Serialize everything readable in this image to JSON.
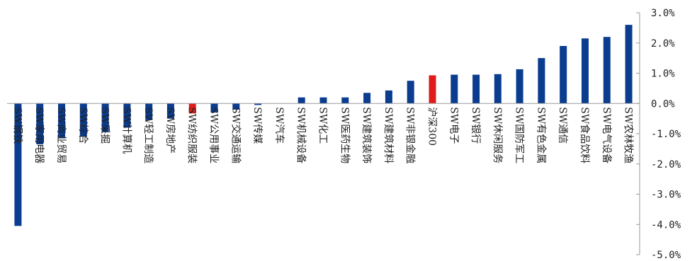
{
  "chart_data": {
    "type": "bar",
    "categories": [
      "SW钢铁",
      "SW家用电器",
      "SW商业贸易",
      "SW综合",
      "SW采掘",
      "SW计算机",
      "SW轻工制造",
      "SW房地产",
      "SW纺织服装",
      "SW公用事业",
      "SW交通运输",
      "SW传媒",
      "SW汽车",
      "SW机械设备",
      "SW化工",
      "SW医药生物",
      "SW建筑装饰",
      "SW建筑材料",
      "SW非银金融",
      "沪深300",
      "SW电子",
      "SW银行",
      "SW休闲服务",
      "SW国防军工",
      "SW有色金属",
      "SW通信",
      "SW食品饮料",
      "SW电气设备",
      "SW农林牧渔"
    ],
    "values": [
      -4.05,
      -1.35,
      -1.15,
      -1.1,
      -0.95,
      -0.8,
      -0.55,
      -0.5,
      -0.33,
      -0.3,
      -0.2,
      -0.05,
      0.0,
      0.2,
      0.2,
      0.2,
      0.35,
      0.43,
      0.75,
      0.93,
      0.95,
      0.95,
      0.97,
      1.13,
      1.5,
      1.9,
      2.15,
      2.2,
      2.6
    ],
    "highlight_categories": [
      "SW纺织服装",
      "沪深300"
    ],
    "ylim": [
      -5.0,
      3.0
    ],
    "yticks": [
      "3.0%",
      "2.0%",
      "1.0%",
      "0.0%",
      "-1.0%",
      "-2.0%",
      "-3.0%",
      "-4.0%",
      "-5.0%"
    ],
    "ytick_values": [
      3,
      2,
      1,
      0,
      -1,
      -2,
      -3,
      -4,
      -5
    ],
    "y_axis_side": "right",
    "grid": false,
    "title": "",
    "xlabel": "",
    "ylabel": "",
    "colors": {
      "default": "#0a3c8f",
      "highlight": "#e01b1b",
      "axis": "#999999"
    }
  }
}
